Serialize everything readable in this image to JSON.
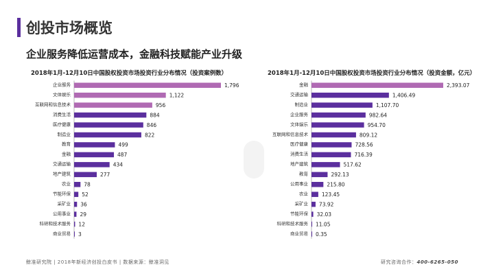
{
  "header": {
    "title": "创投市场概览",
    "subtitle": "企业服务降低运营成本，金融科技赋能产业升级"
  },
  "footer": {
    "left": "鲸准研究院 | 2018年新经济创投白皮书 | 数据来源：鲸准洞见",
    "right_label": "研究咨询合作：",
    "right_phone": "400-6265-050"
  },
  "colors": {
    "highlight": "#b06ab3",
    "primary": "#5b2f9e",
    "accent_bar": "#5b2f9e"
  },
  "chart_data": [
    {
      "type": "bar",
      "orientation": "horizontal",
      "title": "2018年1月-12月10日中国股权投资市场投资行业分布情况（投资案例数）",
      "categories": [
        "企业服务",
        "文体娱乐",
        "互联网和信息技术",
        "消费生活",
        "医疗健康",
        "制造业",
        "教育",
        "金融",
        "交通运输",
        "地产建筑",
        "农业",
        "节能环保",
        "采矿业",
        "公用事业",
        "科研和技术服务",
        "商业贸易"
      ],
      "values": [
        1796,
        1122,
        956,
        884,
        846,
        822,
        499,
        487,
        434,
        277,
        78,
        52,
        36,
        29,
        12,
        3
      ],
      "labels": [
        "1,796",
        "1,122",
        "956",
        "884",
        "846",
        "822",
        "499",
        "487",
        "434",
        "277",
        "78",
        "52",
        "36",
        "29",
        "12",
        "3"
      ],
      "highlighted_count": 3,
      "xlim": [
        0,
        1796
      ]
    },
    {
      "type": "bar",
      "orientation": "horizontal",
      "title": "2018年1月-12月10日中国股权投资市场投资行业分布情况（投资金额，亿元）",
      "categories": [
        "金融",
        "交通运输",
        "制造业",
        "企业服务",
        "文体娱乐",
        "互联网和信息技术",
        "医疗健康",
        "消费生活",
        "地产建筑",
        "教育",
        "公用事业",
        "农业",
        "采矿业",
        "节能环保",
        "科研和技术服务",
        "商业贸易"
      ],
      "values": [
        2393.07,
        1406.49,
        1107.7,
        982.64,
        954.7,
        809.12,
        728.56,
        716.39,
        517.62,
        292.13,
        215.8,
        123.45,
        73.92,
        32.03,
        11.05,
        0.35
      ],
      "labels": [
        "2,393.07",
        "1,406.49",
        "1,107.70",
        "982.64",
        "954.70",
        "809.12",
        "728.56",
        "716.39",
        "517.62",
        "292.13",
        "215.80",
        "123.45",
        "73.92",
        "32.03",
        "11.05",
        "0.35"
      ],
      "highlighted_count": 1,
      "xlim": [
        0,
        2393.07
      ]
    }
  ]
}
